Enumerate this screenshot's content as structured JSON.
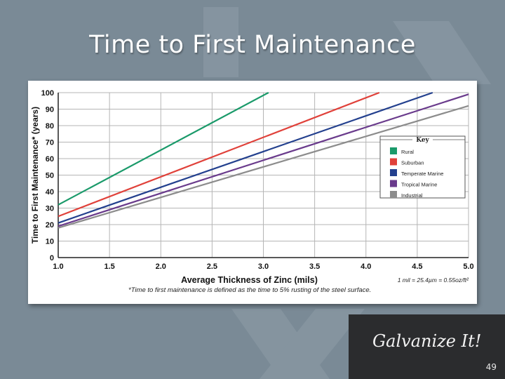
{
  "slide": {
    "title": "Time to First Maintenance",
    "brand": "Galvanize It!",
    "page_number": "49"
  },
  "colors": {
    "background": "#7a8a96",
    "brand_box": "#2b2c2e"
  },
  "chart_data": {
    "type": "line",
    "xlabel": "Average Thickness of Zinc (mils)",
    "ylabel": "Time to First Maintenance* (years)",
    "xlim": [
      1.0,
      5.0
    ],
    "ylim": [
      0,
      100
    ],
    "x_ticks": [
      "1.0",
      "1.5",
      "2.0",
      "2.5",
      "3.0",
      "3.5",
      "4.0",
      "4.5",
      "5.0"
    ],
    "y_ticks": [
      "0",
      "10",
      "20",
      "30",
      "40",
      "50",
      "60",
      "70",
      "80",
      "90",
      "100"
    ],
    "grid": true,
    "legend": {
      "title": "Key",
      "placement": "upper-right"
    },
    "series": [
      {
        "name": "Rural",
        "color": "#1a9a6a",
        "x": [
          1.0,
          3.05
        ],
        "y": [
          32,
          100
        ]
      },
      {
        "name": "Suburban",
        "color": "#e0413a",
        "x": [
          1.0,
          4.13
        ],
        "y": [
          25,
          100
        ]
      },
      {
        "name": "Temperate Marine",
        "color": "#23408e",
        "x": [
          1.0,
          4.65
        ],
        "y": [
          21,
          100
        ]
      },
      {
        "name": "Tropical Marine",
        "color": "#6a3b8c",
        "x": [
          1.0,
          5.0
        ],
        "y": [
          19,
          99
        ]
      },
      {
        "name": "Industrial",
        "color": "#8c8c8c",
        "x": [
          1.0,
          5.0
        ],
        "y": [
          18,
          92
        ]
      }
    ],
    "annotations": {
      "conversion": "1 mil = 25.4µm = 0.55oz/ft²",
      "footnote": "*Time to first maintenance is defined as the time to 5% rusting of the steel surface."
    }
  }
}
